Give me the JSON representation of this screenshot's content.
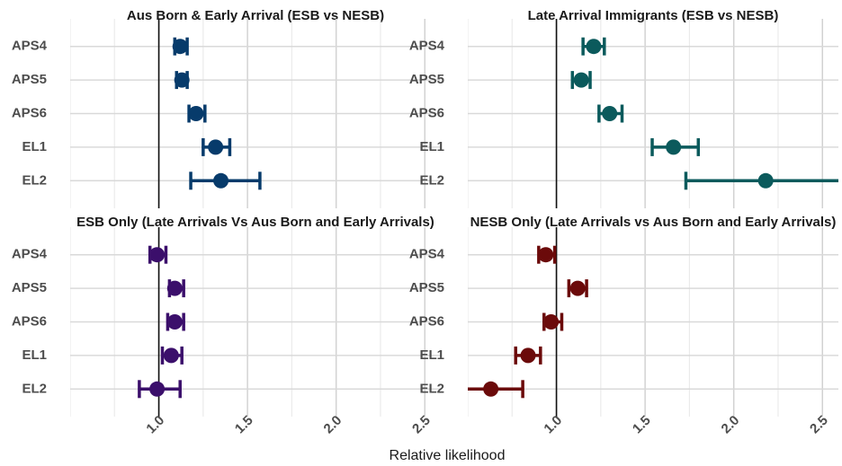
{
  "xlabel": "Relative likelihood",
  "chart_data": [
    {
      "type": "errorbar",
      "title": "Aus Born & Early Arrival (ESB vs NESB)",
      "color": "#073b6b",
      "categories": [
        "APS4",
        "APS5",
        "APS6",
        "EL1",
        "EL2"
      ],
      "values": [
        1.12,
        1.13,
        1.21,
        1.32,
        1.35
      ],
      "lower": [
        1.09,
        1.1,
        1.17,
        1.25,
        1.18
      ],
      "upper": [
        1.16,
        1.16,
        1.26,
        1.4,
        1.57
      ],
      "xlim": [
        0.5,
        2.59
      ],
      "xticks": [
        {
          "value": 1,
          "label": "1.0"
        },
        {
          "value": 1.5,
          "label": "1.5"
        },
        {
          "value": 2,
          "label": "2.0"
        },
        {
          "value": 2.5,
          "label": "2.5"
        }
      ],
      "minor_xticks": [
        0.5,
        0.75,
        1.25,
        1.75,
        2.25
      ],
      "reference_line": 1,
      "grid": true,
      "show_xtick_labels": false
    },
    {
      "type": "errorbar",
      "title": "Late Arrival Immigrants (ESB vs NESB)",
      "color": "#0b5a5c",
      "categories": [
        "APS4",
        "APS5",
        "APS6",
        "EL1",
        "EL2"
      ],
      "values": [
        1.21,
        1.14,
        1.3,
        1.66,
        2.18
      ],
      "lower": [
        1.15,
        1.09,
        1.24,
        1.54,
        1.73
      ],
      "upper": [
        1.27,
        1.19,
        1.37,
        1.8,
        2.7
      ],
      "xlim": [
        0.5,
        2.59
      ],
      "xticks": [
        {
          "value": 1,
          "label": "1.0"
        },
        {
          "value": 1.5,
          "label": "1.5"
        },
        {
          "value": 2,
          "label": "2.0"
        },
        {
          "value": 2.5,
          "label": "2.5"
        }
      ],
      "minor_xticks": [
        0.5,
        0.75,
        1.25,
        1.75,
        2.25
      ],
      "reference_line": 1,
      "grid": true,
      "show_xtick_labels": false
    },
    {
      "type": "errorbar",
      "title": "ESB Only (Late Arrivals Vs Aus Born and Early Arrivals)",
      "color": "#3b0f6b",
      "categories": [
        "APS4",
        "APS5",
        "APS6",
        "EL1",
        "EL2"
      ],
      "values": [
        0.99,
        1.09,
        1.09,
        1.07,
        0.99
      ],
      "lower": [
        0.95,
        1.06,
        1.05,
        1.02,
        0.89
      ],
      "upper": [
        1.04,
        1.14,
        1.14,
        1.13,
        1.12
      ],
      "xlim": [
        0.5,
        2.59
      ],
      "xticks": [
        {
          "value": 1,
          "label": "1.0"
        },
        {
          "value": 1.5,
          "label": "1.5"
        },
        {
          "value": 2,
          "label": "2.0"
        },
        {
          "value": 2.5,
          "label": "2.5"
        }
      ],
      "minor_xticks": [
        0.5,
        0.75,
        1.25,
        1.75,
        2.25
      ],
      "reference_line": 1,
      "grid": true,
      "show_xtick_labels": true
    },
    {
      "type": "errorbar",
      "title": "NESB Only (Late Arrivals vs Aus Born and Early Arrivals)",
      "color": "#6b0a0a",
      "categories": [
        "APS4",
        "APS5",
        "APS6",
        "EL1",
        "EL2"
      ],
      "values": [
        0.94,
        1.12,
        0.97,
        0.84,
        0.63
      ],
      "lower": [
        0.9,
        1.07,
        0.93,
        0.77,
        0.49
      ],
      "upper": [
        0.99,
        1.17,
        1.03,
        0.91,
        0.81
      ],
      "xlim": [
        0.5,
        2.59
      ],
      "xticks": [
        {
          "value": 1,
          "label": "1.0"
        },
        {
          "value": 1.5,
          "label": "1.5"
        },
        {
          "value": 2,
          "label": "2.0"
        },
        {
          "value": 2.5,
          "label": "2.5"
        }
      ],
      "minor_xticks": [
        0.5,
        0.75,
        1.25,
        1.75,
        2.25
      ],
      "reference_line": 1,
      "grid": true,
      "show_xtick_labels": true
    }
  ]
}
